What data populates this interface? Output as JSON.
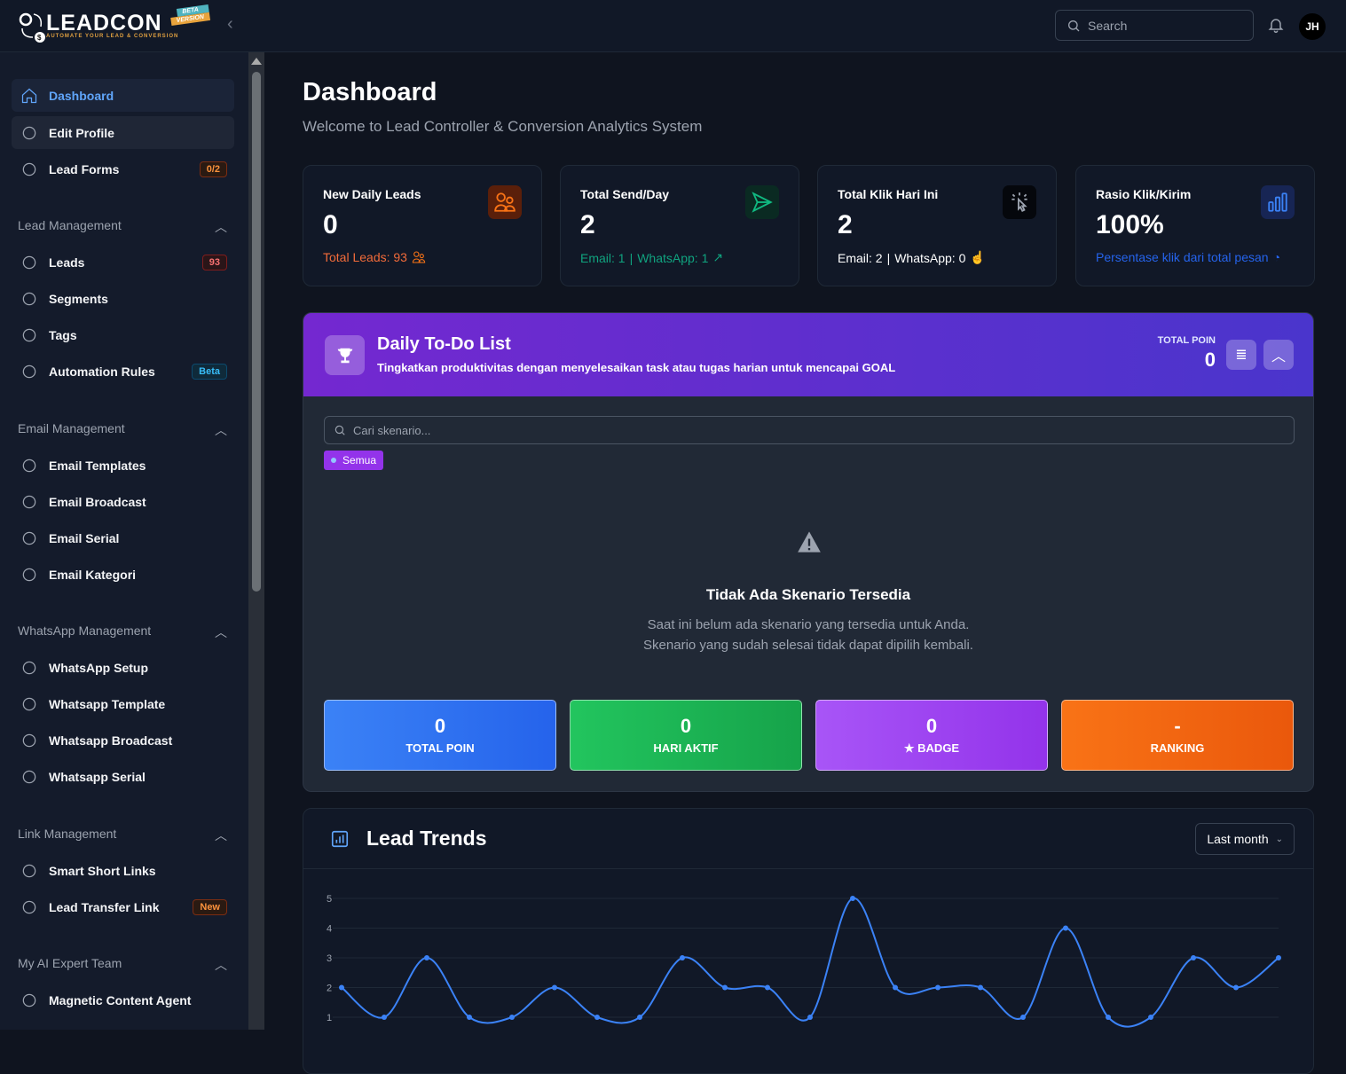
{
  "brand": {
    "name": "LEADCON",
    "tagline": "AUTOMATE YOUR LEAD & CONVERSION",
    "beta1": "BETA",
    "beta2": "VERSION"
  },
  "header": {
    "search_placeholder": "Search",
    "avatar": "JH"
  },
  "sidebar": {
    "top": [
      {
        "label": "Dashboard",
        "icon": "home-icon"
      },
      {
        "label": "Edit Profile",
        "icon": "user-circle-icon"
      },
      {
        "label": "Lead Forms",
        "icon": "link-icon",
        "badge": "0/2"
      }
    ],
    "sections": [
      {
        "title": "Lead Management",
        "items": [
          {
            "label": "Leads",
            "badge": "93"
          },
          {
            "label": "Segments"
          },
          {
            "label": "Tags"
          },
          {
            "label": "Automation Rules",
            "badge": "Beta"
          }
        ]
      },
      {
        "title": "Email Management",
        "items": [
          {
            "label": "Email Templates"
          },
          {
            "label": "Email Broadcast"
          },
          {
            "label": "Email Serial"
          },
          {
            "label": "Email Kategori"
          }
        ]
      },
      {
        "title": "WhatsApp Management",
        "items": [
          {
            "label": "WhatsApp Setup"
          },
          {
            "label": "Whatsapp Template"
          },
          {
            "label": "Whatsapp Broadcast"
          },
          {
            "label": "Whatsapp Serial"
          }
        ]
      },
      {
        "title": "Link Management",
        "items": [
          {
            "label": "Smart Short Links"
          },
          {
            "label": "Lead Transfer Link",
            "badge": "New"
          }
        ]
      },
      {
        "title": "My AI Expert Team",
        "items": [
          {
            "label": "Magnetic Content Agent"
          }
        ]
      }
    ]
  },
  "page": {
    "title": "Dashboard",
    "subtitle": "Welcome to Lead Controller & Conversion Analytics System"
  },
  "cards": [
    {
      "title": "New Daily Leads",
      "value": "0",
      "footer": "Total Leads: 93",
      "color": "#f97316"
    },
    {
      "title": "Total Send/Day",
      "value": "2",
      "footer_a": "Email: 1",
      "footer_b": "WhatsApp: 1",
      "color": "#10b981"
    },
    {
      "title": "Total Klik Hari Ini",
      "value": "2",
      "footer_a": "Email: 2",
      "footer_b": "WhatsApp: 0",
      "color": "#ffffff"
    },
    {
      "title": "Rasio Klik/Kirim",
      "value": "100%",
      "footer": "Persentase klik dari total pesan",
      "color": "#2563eb"
    }
  ],
  "todo": {
    "title": "Daily To-Do List",
    "desc": "Tingkatkan produktivitas dengan menyelesaikan task atau tugas harian untuk mencapai GOAL",
    "total_label": "TOTAL POIN",
    "total_value": "0",
    "search_placeholder": "Cari skenario...",
    "filter": "Semua",
    "empty_title": "Tidak Ada Skenario Tersedia",
    "empty_line1": "Saat ini belum ada skenario yang tersedia untuk Anda.",
    "empty_line2": "Skenario yang sudah selesai tidak dapat dipilih kembali.",
    "stats": [
      {
        "value": "0",
        "label": "TOTAL POIN"
      },
      {
        "value": "0",
        "label": "HARI AKTIF"
      },
      {
        "value": "0",
        "label": "★ BADGE"
      },
      {
        "value": "-",
        "label": "RANKING"
      }
    ]
  },
  "trends": {
    "title": "Lead Trends",
    "range": "Last month"
  },
  "chart_data": {
    "type": "line",
    "y_ticks": [
      1,
      2,
      3,
      4,
      5
    ],
    "values": [
      2,
      1,
      3,
      1,
      1,
      2,
      1,
      1,
      3,
      2,
      2,
      1,
      5,
      2,
      2,
      2,
      1,
      4,
      1,
      1,
      3,
      2,
      3
    ],
    "color": "#3b82f6",
    "grid": true
  }
}
